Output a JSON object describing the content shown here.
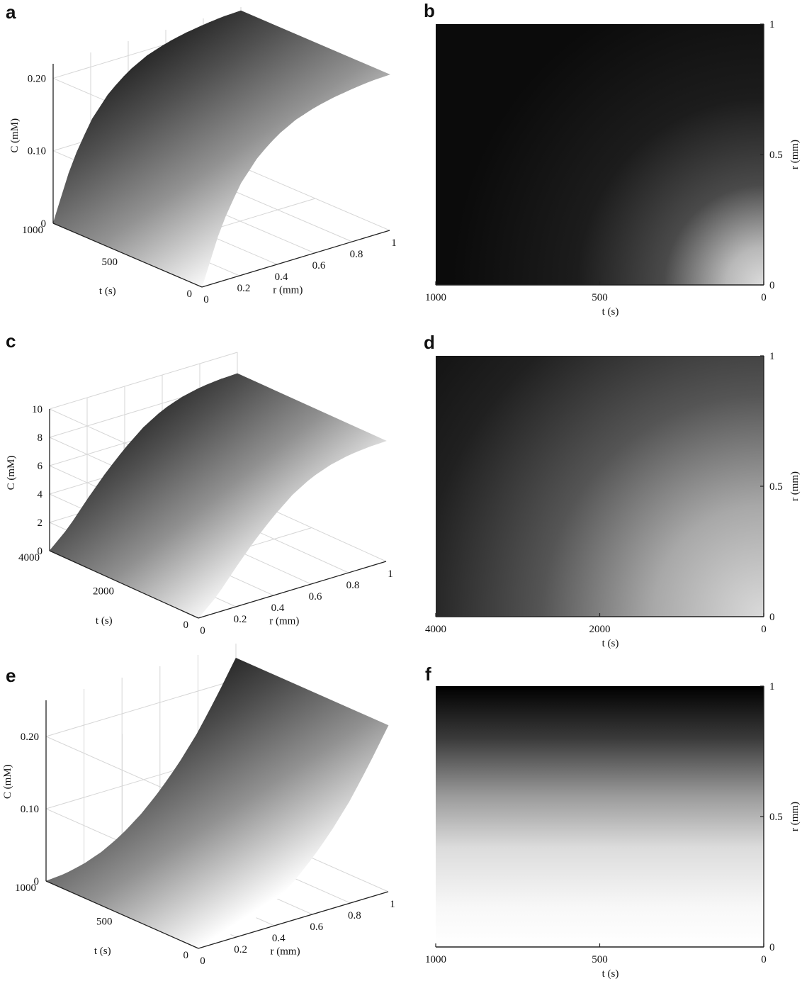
{
  "figure": {
    "panels_3d": [
      {
        "letter": "a",
        "grey": {
          "top": 10,
          "bottom": 250
        },
        "chart_data": {
          "type": "surface",
          "title": "",
          "xlabel": "r (mm)",
          "ylabel": "t (s)",
          "zlabel": "C (mM)",
          "xlim": [
            0,
            1
          ],
          "ylim": [
            0,
            1000
          ],
          "zlim": [
            0,
            0.22
          ],
          "x_ticks": [
            "0",
            "0.2",
            "0.4",
            "0.6",
            "0.8",
            "1"
          ],
          "y_ticks": [
            "0",
            "500",
            "1000"
          ],
          "z_ticks": [
            "0",
            "0.10",
            "0.20"
          ],
          "surface_profile": {
            "r": [
              0,
              0.1,
              0.2,
              0.3,
              0.4,
              0.5,
              0.6,
              0.7,
              0.8,
              0.9,
              1.0
            ],
            "C": [
              0,
              0.075,
              0.125,
              0.157,
              0.178,
              0.192,
              0.201,
              0.207,
              0.211,
              0.214,
              0.215
            ],
            "at_t": 1000
          },
          "boundary_C": 0.215,
          "grid": true
        }
      },
      {
        "letter": "c",
        "grey": {
          "top": 12,
          "bottom": 245
        },
        "chart_data": {
          "type": "surface",
          "title": "",
          "xlabel": "r (mm)",
          "ylabel": "t (s)",
          "zlabel": "C (mM)",
          "xlim": [
            0,
            1
          ],
          "ylim": [
            0,
            4000
          ],
          "zlim": [
            0,
            10
          ],
          "x_ticks": [
            "0",
            "0.2",
            "0.4",
            "0.6",
            "0.8",
            "1"
          ],
          "y_ticks": [
            "0",
            "2000",
            "4000"
          ],
          "z_ticks": [
            "0",
            "2",
            "4",
            "6",
            "8",
            "10"
          ],
          "surface_profile": {
            "r": [
              0,
              0.1,
              0.2,
              0.3,
              0.4,
              0.5,
              0.6,
              0.7,
              0.8,
              0.9,
              1.0
            ],
            "C": [
              0,
              1.2,
              2.8,
              4.3,
              5.6,
              6.7,
              7.5,
              8.0,
              8.3,
              8.45,
              8.5
            ],
            "at_t": 4000
          },
          "boundary_C": 8.5,
          "grid": true
        }
      },
      {
        "letter": "e",
        "grey": {
          "top": 0,
          "bottom": 255
        },
        "chart_data": {
          "type": "surface",
          "title": "",
          "xlabel": "r (mm)",
          "ylabel": "t (s)",
          "zlabel": "C (mM)",
          "xlim": [
            0,
            1
          ],
          "ylim": [
            0,
            1000
          ],
          "zlim": [
            0,
            0.25
          ],
          "x_ticks": [
            "0",
            "0.2",
            "0.4",
            "0.6",
            "0.8",
            "1"
          ],
          "y_ticks": [
            "0",
            "500",
            "1000"
          ],
          "z_ticks": [
            "0",
            "0.10",
            "0.20"
          ],
          "surface_profile": {
            "r": [
              0,
              0.1,
              0.2,
              0.3,
              0.4,
              0.5,
              0.6,
              0.7,
              0.8,
              0.9,
              1.0
            ],
            "C": [
              0,
              0.002,
              0.008,
              0.018,
              0.033,
              0.053,
              0.078,
              0.108,
              0.143,
              0.185,
              0.23
            ],
            "at_t": 1000
          },
          "boundary_C": 0.23,
          "grid": true
        }
      }
    ],
    "panels_2d": [
      {
        "letter": "b",
        "chart_data": {
          "type": "heatmap",
          "title": "",
          "xlabel": "t (s)",
          "ylabel": "r (mm)",
          "xlim": [
            1000,
            0
          ],
          "ylim": [
            0,
            1
          ],
          "x_ticks": [
            "1000",
            "500",
            "0"
          ],
          "y_ticks": [
            "0",
            "0.5",
            "1"
          ],
          "colormap": [
            "#0b0b0b",
            "#dcdcdc"
          ]
        }
      },
      {
        "letter": "d",
        "chart_data": {
          "type": "heatmap",
          "title": "",
          "xlabel": "t (s)",
          "ylabel": "r (mm)",
          "xlim": [
            4000,
            0
          ],
          "ylim": [
            0,
            1
          ],
          "x_ticks": [
            "4000",
            "2000",
            "0"
          ],
          "y_ticks": [
            "0",
            "0.5",
            "1"
          ],
          "colormap": [
            "#101010",
            "#dadada"
          ]
        }
      },
      {
        "letter": "f",
        "chart_data": {
          "type": "heatmap",
          "title": "",
          "xlabel": "t (s)",
          "ylabel": "r (mm)",
          "xlim": [
            1000,
            0
          ],
          "ylim": [
            0,
            1
          ],
          "x_ticks": [
            "1000",
            "500",
            "0"
          ],
          "y_ticks": [
            "0",
            "0.5",
            "1"
          ],
          "colormap": [
            "#000000",
            "#ffffff"
          ]
        }
      }
    ]
  }
}
